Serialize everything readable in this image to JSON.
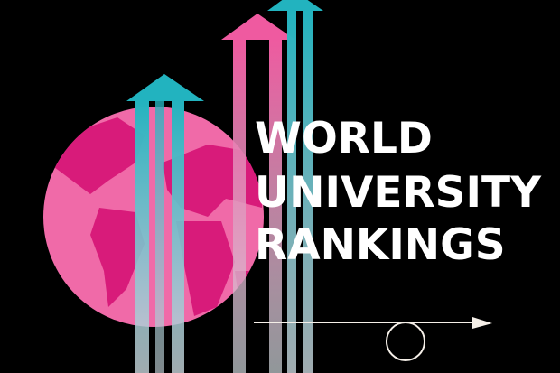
{
  "headline": {
    "line1": "WORLD",
    "line2": "UNIVERSITY",
    "line3": "RANKINGS"
  },
  "colors": {
    "background": "#000000",
    "globe": "#f06aa8",
    "land": "#d81b7a",
    "teal": "#22b3bf",
    "pink": "#ef5aa0",
    "text": "#ffffff"
  },
  "icons": [
    "globe-icon",
    "arrow-up-icon",
    "arrow-right-icon",
    "circle-icon"
  ]
}
